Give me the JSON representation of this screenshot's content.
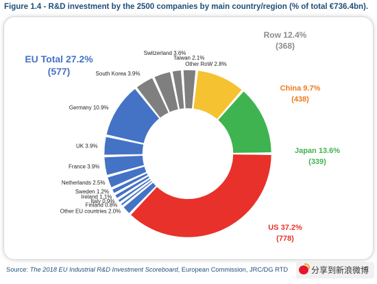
{
  "title": "Figure 1.4 - R&D investment by the 2500 companies by main country/region (% of total €736.4bn).",
  "source": {
    "prefix": "Source: ",
    "italic": "The 2018 EU Industrial R&D Investment Scoreboard",
    "suffix": ",  European Commission, JRC/DG RTD"
  },
  "watermark_text": "分享到新浪微博",
  "chart_data": {
    "type": "pie",
    "subtype": "exploded-donut",
    "total_label": "€736.4bn",
    "slices": [
      {
        "name": "US",
        "value": 37.2,
        "label": "US 37.2%",
        "count_label": "(778)",
        "color": "#e8312a",
        "group": "US"
      },
      {
        "name": "Other EU countries",
        "value": 2.0,
        "label": "Other EU countries 2.0%",
        "color": "#4472c4",
        "group": "EU"
      },
      {
        "name": "Finland",
        "value": 0.8,
        "label": "Finland 0.8%",
        "color": "#4472c4",
        "group": "EU"
      },
      {
        "name": "Italy",
        "value": 0.9,
        "label": "Italy 0.9%",
        "color": "#4472c4",
        "group": "EU"
      },
      {
        "name": "Ireland",
        "value": 1.1,
        "label": "Ireland 1.1%",
        "color": "#4472c4",
        "group": "EU"
      },
      {
        "name": "Sweden",
        "value": 1.2,
        "label": "Sweden 1.2%",
        "color": "#4472c4",
        "group": "EU"
      },
      {
        "name": "Netherlands",
        "value": 2.5,
        "label": "Netherlands 2.5%",
        "color": "#4472c4",
        "group": "EU"
      },
      {
        "name": "France",
        "value": 3.9,
        "label": "France 3.9%",
        "color": "#4472c4",
        "group": "EU"
      },
      {
        "name": "UK",
        "value": 3.9,
        "label": "UK 3.9%",
        "color": "#4472c4",
        "group": "EU"
      },
      {
        "name": "Germany",
        "value": 10.9,
        "label": "Germany 10.9%",
        "color": "#4472c4",
        "group": "EU"
      },
      {
        "name": "South Korea",
        "value": 3.9,
        "label": "South Korea 3.9%",
        "color": "#7f7f7f",
        "group": "RoW"
      },
      {
        "name": "Switzerland",
        "value": 3.6,
        "label": "Switzerland 3.6%",
        "color": "#7f7f7f",
        "group": "RoW"
      },
      {
        "name": "Taiwan",
        "value": 2.1,
        "label": "Taiwan 2.1%",
        "color": "#7f7f7f",
        "group": "RoW"
      },
      {
        "name": "Other RoW",
        "value": 2.8,
        "label": "Other RoW 2.8%",
        "color": "#7f7f7f",
        "group": "RoW"
      },
      {
        "name": "China",
        "value": 9.7,
        "label": "China 9.7%",
        "count_label": "(438)",
        "color": "#f5c232",
        "group": "China"
      },
      {
        "name": "Japan",
        "value": 13.6,
        "label": "Japan 13.6%",
        "count_label": "(339)",
        "color": "#3fb34f",
        "group": "Japan"
      }
    ],
    "group_labels": [
      {
        "name": "EU Total",
        "label": "EU Total 27.2%",
        "count_label": "(577)",
        "color": "#4472c4"
      },
      {
        "name": "Row",
        "label": "Row 12.4%",
        "count_label": "(368)",
        "color": "#8c8c8c"
      }
    ]
  }
}
